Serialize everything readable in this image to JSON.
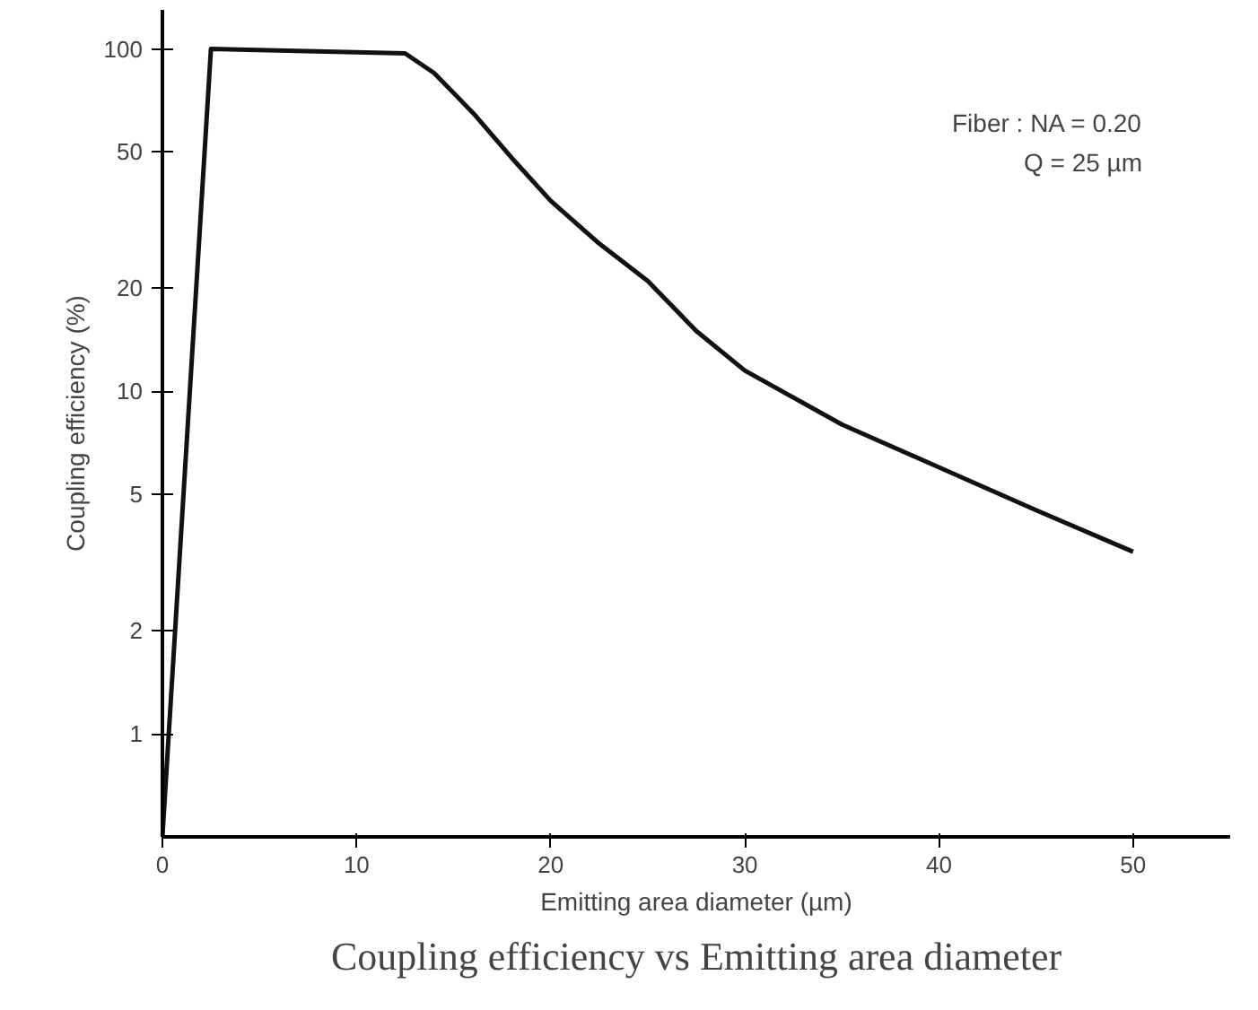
{
  "chart_data": {
    "type": "line",
    "title": "Coupling efficiency vs Emitting area diameter",
    "xlabel": "Emitting area diameter (µm)",
    "ylabel": "Coupling efficiency (%)",
    "x": [
      0,
      2.5,
      12.5,
      14,
      16,
      18,
      20,
      22.5,
      25,
      27.5,
      30,
      35,
      40,
      45,
      50
    ],
    "series": [
      {
        "color": "#111111",
        "values": [
          0.5,
          100,
          97,
          85,
          65,
          48,
          36,
          27,
          21,
          15,
          11.5,
          8,
          6,
          4.5,
          3.4
        ]
      }
    ],
    "xlim": [
      0,
      55
    ],
    "xticks": [
      0,
      10,
      20,
      30,
      40,
      50
    ],
    "ylim": [
      0.5,
      130
    ],
    "log": "y",
    "yticks": [
      1,
      2,
      5,
      10,
      20,
      50,
      100
    ],
    "annotations": [
      "Fiber : NA = 0.20",
      "Q = 25 µm"
    ],
    "grid": false,
    "marker": "none",
    "line_style": "solid"
  }
}
